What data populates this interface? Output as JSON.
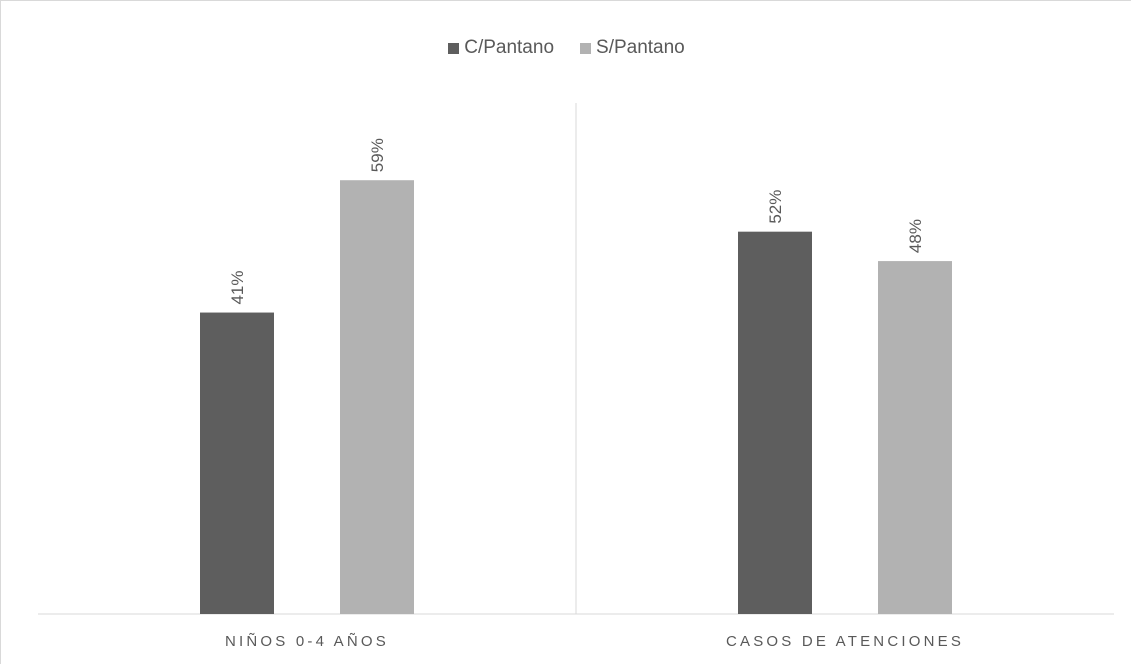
{
  "chart_data": {
    "type": "bar",
    "categories": [
      "NIÑOS 0-4 AÑOS",
      "CASOS DE ATENCIONES"
    ],
    "series": [
      {
        "name": "C/Pantano",
        "values": [
          41,
          52
        ],
        "labels": [
          "41%",
          "52%"
        ],
        "color": "#5e5e5e"
      },
      {
        "name": "S/Pantano",
        "values": [
          59,
          48
        ],
        "labels": [
          "59%",
          "48%"
        ],
        "color": "#b2b2b2"
      }
    ],
    "ylim": [
      0,
      100
    ],
    "legend_position": "top",
    "grid": false
  },
  "legend": {
    "items": [
      {
        "label": "C/Pantano",
        "color": "#5e5e5e"
      },
      {
        "label": "S/Pantano",
        "color": "#b2b2b2"
      }
    ]
  }
}
